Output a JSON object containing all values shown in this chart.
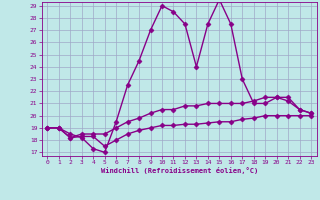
{
  "xlabel": "Windchill (Refroidissement éolien,°C)",
  "x": [
    0,
    1,
    2,
    3,
    4,
    5,
    6,
    7,
    8,
    9,
    10,
    11,
    12,
    13,
    14,
    15,
    16,
    17,
    18,
    19,
    20,
    21,
    22,
    23
  ],
  "line1": [
    19.0,
    19.0,
    18.5,
    18.2,
    17.3,
    17.0,
    19.5,
    22.5,
    24.5,
    27.0,
    29.0,
    28.5,
    27.5,
    24.0,
    27.5,
    29.5,
    27.5,
    23.0,
    21.0,
    21.0,
    21.5,
    21.5,
    20.5,
    20.2
  ],
  "line2": [
    19.0,
    19.0,
    18.2,
    18.5,
    18.5,
    18.5,
    19.0,
    19.5,
    19.8,
    20.2,
    20.5,
    20.5,
    20.8,
    20.8,
    21.0,
    21.0,
    21.0,
    21.0,
    21.2,
    21.5,
    21.5,
    21.2,
    20.5,
    20.2
  ],
  "line3": [
    19.0,
    19.0,
    18.2,
    18.3,
    18.3,
    17.5,
    18.0,
    18.5,
    18.8,
    19.0,
    19.2,
    19.2,
    19.3,
    19.3,
    19.4,
    19.5,
    19.5,
    19.7,
    19.8,
    20.0,
    20.0,
    20.0,
    20.0,
    20.0
  ],
  "line_color": "#880088",
  "bg_color": "#c0e8e8",
  "grid_color": "#a0a8c8",
  "ylim_min": 17,
  "ylim_max": 29,
  "xlim_min": 0,
  "xlim_max": 23,
  "yticks": [
    17,
    18,
    19,
    20,
    21,
    22,
    23,
    24,
    25,
    26,
    27,
    28,
    29
  ],
  "xticks": [
    0,
    1,
    2,
    3,
    4,
    5,
    6,
    7,
    8,
    9,
    10,
    11,
    12,
    13,
    14,
    15,
    16,
    17,
    18,
    19,
    20,
    21,
    22,
    23
  ],
  "marker": "D",
  "markersize": 2.5,
  "linewidth": 1.0
}
